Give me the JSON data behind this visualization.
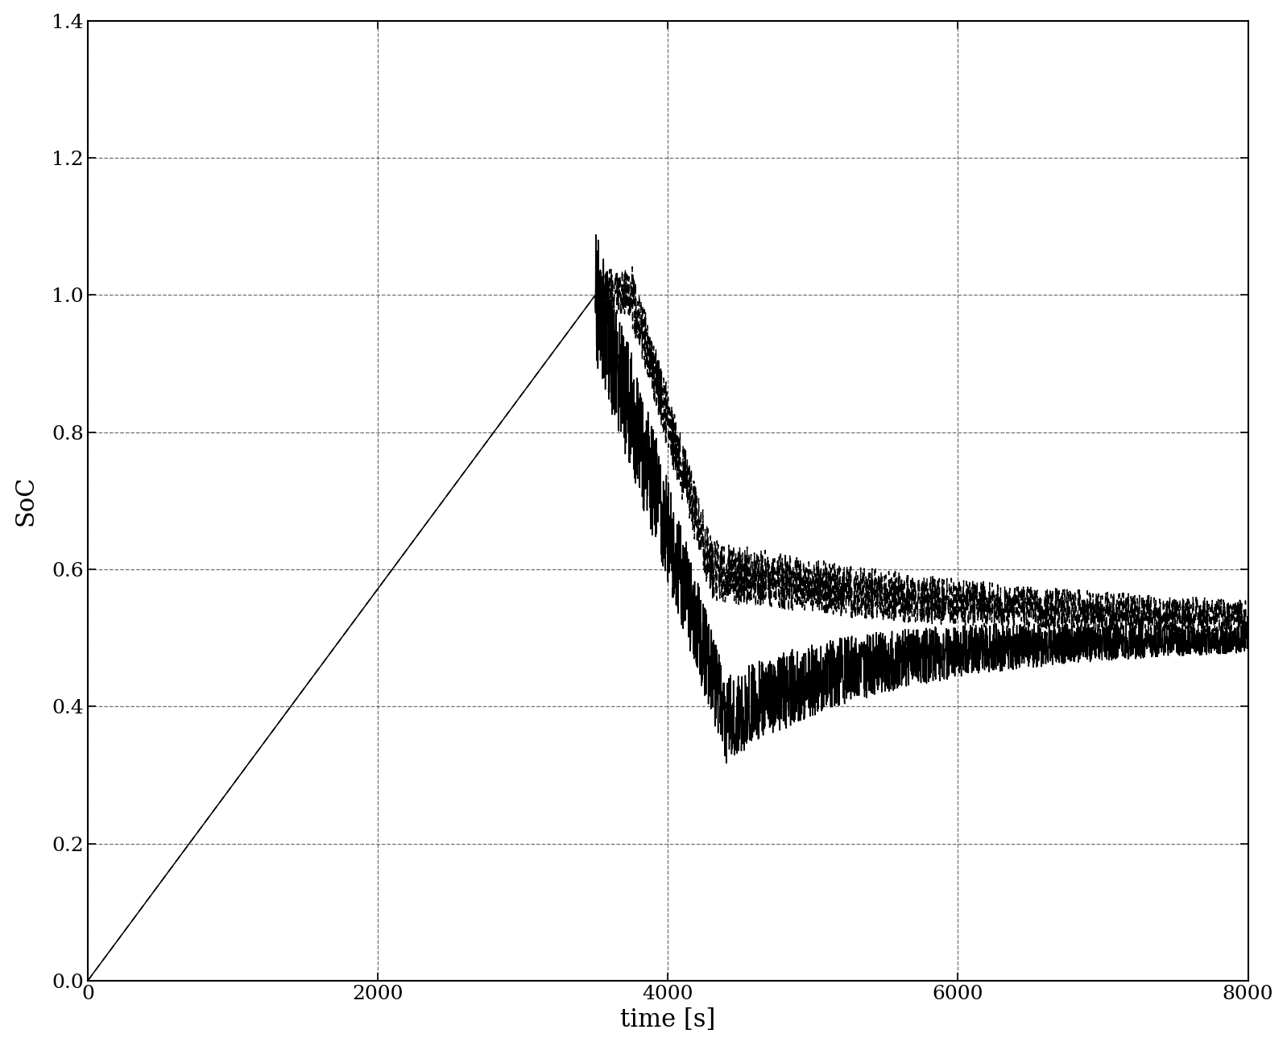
{
  "xlabel": "time [s]",
  "ylabel": "SoC",
  "xlim": [
    0,
    8000
  ],
  "ylim": [
    0,
    1.4
  ],
  "xticks": [
    0,
    2000,
    4000,
    6000,
    8000
  ],
  "yticks": [
    0,
    0.2,
    0.4,
    0.6,
    0.8,
    1.0,
    1.2,
    1.4
  ],
  "grid_color": "#333333",
  "background_color": "#ffffff",
  "line_color": "#000000",
  "figwidth": 15.98,
  "figheight": 12.99,
  "dpi": 100
}
